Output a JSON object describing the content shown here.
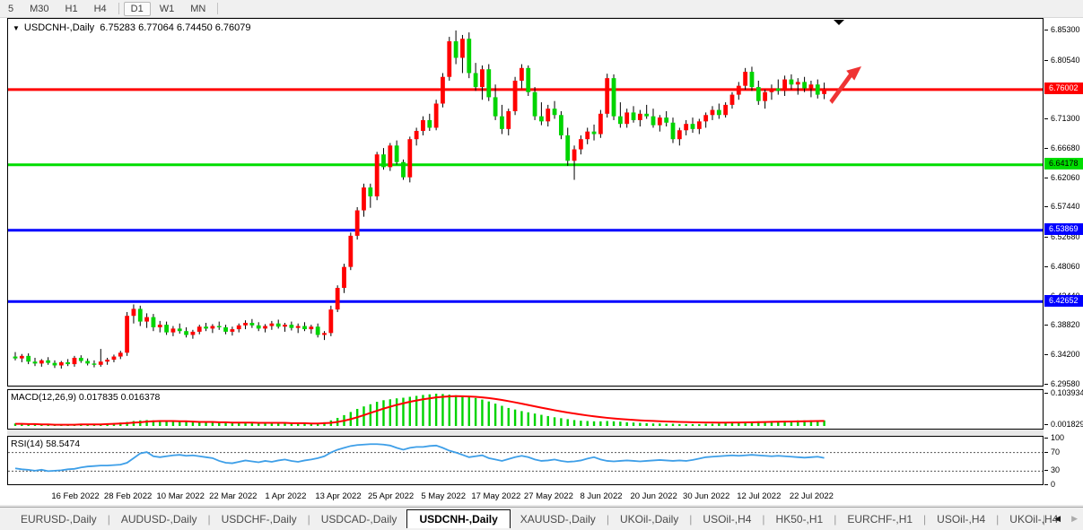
{
  "toolbar": {
    "items": [
      "5",
      "M30",
      "H1",
      "H4",
      "D1",
      "W1",
      "MN"
    ],
    "active": "D1",
    "separators_after": [
      "H4",
      "MN"
    ]
  },
  "chart_title": {
    "expander": "▼",
    "symbol": "USDCNH-,Daily",
    "ohlc": "6.75283 6.77064 6.74450 6.76079"
  },
  "price_axis": {
    "ticks": [
      "6.85300",
      "6.80540",
      "6.71300",
      "6.66680",
      "6.62060",
      "6.57440",
      "6.52680",
      "6.48060",
      "6.43440",
      "6.38820",
      "6.34200",
      "6.29580"
    ],
    "badges": [
      {
        "label": "6.76002",
        "bg": "#ff0000",
        "fg": "#ffffff"
      },
      {
        "label": "6.64178",
        "bg": "#00dd00",
        "fg": "#000000"
      },
      {
        "label": "6.53869",
        "bg": "#0000ff",
        "fg": "#ffffff"
      },
      {
        "label": "6.42652",
        "bg": "#0000ff",
        "fg": "#ffffff"
      }
    ]
  },
  "macd_panel": {
    "label": "MACD(12,26,9)",
    "values": "0.017835 0.016378",
    "axis": [
      "0.103934",
      "0.001829"
    ]
  },
  "rsi_panel": {
    "label": "RSI(14)",
    "value": "58.5474",
    "axis": [
      "100",
      "70",
      "30",
      "0"
    ]
  },
  "date_axis": [
    "16 Feb 2022",
    "28 Feb 2022",
    "10 Mar 2022",
    "22 Mar 2022",
    "1 Apr 2022",
    "13 Apr 2022",
    "25 Apr 2022",
    "5 May 2022",
    "17 May 2022",
    "27 May 2022",
    "8 Jun 2022",
    "20 Jun 2022",
    "30 Jun 2022",
    "12 Jul 2022",
    "22 Jul 2022"
  ],
  "tab_bar": {
    "tabs": [
      {
        "label": "EURUSD-,Daily",
        "active": false
      },
      {
        "label": "AUDUSD-,Daily",
        "active": false
      },
      {
        "label": "USDCHF-,Daily",
        "active": false
      },
      {
        "label": "USDCAD-,Daily",
        "active": false
      },
      {
        "label": "USDCNH-,Daily",
        "active": true
      },
      {
        "label": "XAUUSD-,Daily",
        "active": false
      },
      {
        "label": "UKOil-,Daily",
        "active": false
      },
      {
        "label": "USOil-,H4",
        "active": false
      },
      {
        "label": "HK50-,H1",
        "active": false
      },
      {
        "label": "EURCHF-,H1",
        "active": false
      },
      {
        "label": "USOil-,H4",
        "active": false
      },
      {
        "label": "UKOil-,H4",
        "active": false
      }
    ],
    "scroll_left": "◀",
    "scroll_right": "▶",
    "scroll_sep": "|"
  },
  "chart_data": {
    "type": "candlestick",
    "symbol": "USDCNH-,Daily",
    "up_color": "#ff0000",
    "down_color": "#00d400",
    "wick_color": "#000000",
    "price_range": [
      6.2958,
      6.853
    ],
    "hlines": [
      {
        "value": 6.76002,
        "color": "#ff0000",
        "width": 3
      },
      {
        "value": 6.64178,
        "color": "#00dd00",
        "width": 3
      },
      {
        "value": 6.53869,
        "color": "#0000ff",
        "width": 3
      },
      {
        "value": 6.42652,
        "color": "#0000ff",
        "width": 3
      }
    ],
    "drawings": {
      "trend_arrow_color": "#ef3434",
      "shift_marker_color": "#000000"
    },
    "ohlc": [
      [
        6.34,
        6.347,
        6.334,
        6.337
      ],
      [
        6.337,
        6.344,
        6.331,
        6.341
      ],
      [
        6.341,
        6.345,
        6.328,
        6.332
      ],
      [
        6.332,
        6.338,
        6.325,
        6.329
      ],
      [
        6.329,
        6.336,
        6.324,
        6.334
      ],
      [
        6.334,
        6.339,
        6.327,
        6.33
      ],
      [
        6.33,
        6.334,
        6.322,
        6.326
      ],
      [
        6.326,
        6.333,
        6.321,
        6.331
      ],
      [
        6.331,
        6.336,
        6.325,
        6.328
      ],
      [
        6.328,
        6.341,
        6.324,
        6.338
      ],
      [
        6.338,
        6.342,
        6.33,
        6.333
      ],
      [
        6.333,
        6.337,
        6.326,
        6.329
      ],
      [
        6.329,
        6.334,
        6.323,
        6.327
      ],
      [
        6.327,
        6.352,
        6.324,
        6.332
      ],
      [
        6.332,
        6.338,
        6.327,
        6.335
      ],
      [
        6.335,
        6.343,
        6.331,
        6.34
      ],
      [
        6.34,
        6.349,
        6.336,
        6.346
      ],
      [
        6.346,
        6.41,
        6.341,
        6.404
      ],
      [
        6.404,
        6.422,
        6.392,
        6.415
      ],
      [
        6.415,
        6.42,
        6.388,
        6.395
      ],
      [
        6.395,
        6.408,
        6.385,
        6.402
      ],
      [
        6.402,
        6.407,
        6.38,
        6.386
      ],
      [
        6.386,
        6.396,
        6.378,
        6.39
      ],
      [
        6.39,
        6.395,
        6.374,
        6.378
      ],
      [
        6.378,
        6.388,
        6.372,
        6.384
      ],
      [
        6.384,
        6.392,
        6.376,
        6.38
      ],
      [
        6.38,
        6.386,
        6.37,
        6.374
      ],
      [
        6.374,
        6.382,
        6.368,
        6.379
      ],
      [
        6.379,
        6.39,
        6.375,
        6.387
      ],
      [
        6.387,
        6.393,
        6.38,
        6.384
      ],
      [
        6.384,
        6.391,
        6.377,
        6.388
      ],
      [
        6.388,
        6.395,
        6.382,
        6.386
      ],
      [
        6.386,
        6.39,
        6.375,
        6.379
      ],
      [
        6.379,
        6.387,
        6.373,
        6.383
      ],
      [
        6.383,
        6.392,
        6.378,
        6.389
      ],
      [
        6.389,
        6.397,
        6.383,
        6.393
      ],
      [
        6.393,
        6.399,
        6.385,
        6.389
      ],
      [
        6.389,
        6.394,
        6.38,
        6.384
      ],
      [
        6.384,
        6.391,
        6.378,
        6.388
      ],
      [
        6.388,
        6.396,
        6.382,
        6.392
      ],
      [
        6.392,
        6.398,
        6.384,
        6.387
      ],
      [
        6.387,
        6.393,
        6.379,
        6.39
      ],
      [
        6.39,
        6.395,
        6.381,
        6.385
      ],
      [
        6.385,
        6.392,
        6.377,
        6.388
      ],
      [
        6.388,
        6.394,
        6.38,
        6.383
      ],
      [
        6.383,
        6.39,
        6.376,
        6.387
      ],
      [
        6.387,
        6.392,
        6.37,
        6.374
      ],
      [
        6.374,
        6.38,
        6.366,
        6.377
      ],
      [
        6.377,
        6.42,
        6.372,
        6.414
      ],
      [
        6.414,
        6.452,
        6.41,
        6.448
      ],
      [
        6.448,
        6.486,
        6.44,
        6.481
      ],
      [
        6.481,
        6.535,
        6.476,
        6.53
      ],
      [
        6.53,
        6.575,
        6.524,
        6.57
      ],
      [
        6.57,
        6.612,
        6.56,
        6.606
      ],
      [
        6.606,
        6.612,
        6.574,
        6.592
      ],
      [
        6.592,
        6.662,
        6.586,
        6.658
      ],
      [
        6.658,
        6.668,
        6.634,
        6.638
      ],
      [
        6.638,
        6.676,
        6.632,
        6.672
      ],
      [
        6.672,
        6.68,
        6.642,
        6.646
      ],
      [
        6.646,
        6.65,
        6.618,
        6.622
      ],
      [
        6.622,
        6.686,
        6.614,
        6.682
      ],
      [
        6.682,
        6.7,
        6.672,
        6.695
      ],
      [
        6.695,
        6.718,
        6.688,
        6.712
      ],
      [
        6.712,
        6.722,
        6.695,
        6.7
      ],
      [
        6.7,
        6.744,
        6.696,
        6.738
      ],
      [
        6.738,
        6.786,
        6.732,
        6.78
      ],
      [
        6.78,
        6.843,
        6.774,
        6.836
      ],
      [
        6.836,
        6.853,
        6.8,
        6.81
      ],
      [
        6.81,
        6.846,
        6.786,
        6.84
      ],
      [
        6.84,
        6.85,
        6.778,
        6.786
      ],
      [
        6.786,
        6.802,
        6.758,
        6.764
      ],
      [
        6.764,
        6.798,
        6.744,
        6.792
      ],
      [
        6.792,
        6.8,
        6.742,
        6.748
      ],
      [
        6.748,
        6.768,
        6.712,
        6.718
      ],
      [
        6.718,
        6.736,
        6.69,
        6.698
      ],
      [
        6.698,
        6.73,
        6.688,
        6.726
      ],
      [
        6.726,
        6.78,
        6.72,
        6.774
      ],
      [
        6.774,
        6.8,
        6.762,
        6.794
      ],
      [
        6.794,
        6.798,
        6.75,
        6.756
      ],
      [
        6.756,
        6.764,
        6.712,
        6.718
      ],
      [
        6.718,
        6.74,
        6.704,
        6.71
      ],
      [
        6.71,
        6.736,
        6.702,
        6.73
      ],
      [
        6.73,
        6.742,
        6.714,
        6.72
      ],
      [
        6.72,
        6.726,
        6.682,
        6.688
      ],
      [
        6.688,
        6.7,
        6.64,
        6.648
      ],
      [
        6.648,
        6.672,
        6.618,
        6.666
      ],
      [
        6.666,
        6.688,
        6.658,
        6.682
      ],
      [
        6.682,
        6.7,
        6.674,
        6.694
      ],
      [
        6.694,
        6.705,
        6.68,
        6.69
      ],
      [
        6.69,
        6.728,
        6.684,
        6.722
      ],
      [
        6.722,
        6.785,
        6.716,
        6.778
      ],
      [
        6.778,
        6.784,
        6.712,
        6.718
      ],
      [
        6.718,
        6.74,
        6.7,
        6.706
      ],
      [
        6.706,
        6.73,
        6.7,
        6.724
      ],
      [
        6.724,
        6.734,
        6.708,
        6.712
      ],
      [
        6.712,
        6.728,
        6.702,
        6.722
      ],
      [
        6.722,
        6.736,
        6.714,
        6.718
      ],
      [
        6.718,
        6.73,
        6.7,
        6.704
      ],
      [
        6.704,
        6.72,
        6.694,
        6.716
      ],
      [
        6.716,
        6.726,
        6.702,
        6.708
      ],
      [
        6.708,
        6.716,
        6.676,
        6.682
      ],
      [
        6.682,
        6.7,
        6.672,
        6.696
      ],
      [
        6.696,
        6.712,
        6.688,
        6.706
      ],
      [
        6.706,
        6.716,
        6.692,
        6.698
      ],
      [
        6.698,
        6.714,
        6.69,
        6.71
      ],
      [
        6.71,
        6.724,
        6.7,
        6.72
      ],
      [
        6.72,
        6.734,
        6.712,
        6.728
      ],
      [
        6.728,
        6.738,
        6.714,
        6.72
      ],
      [
        6.72,
        6.74,
        6.716,
        6.736
      ],
      [
        6.736,
        6.756,
        6.73,
        6.752
      ],
      [
        6.752,
        6.772,
        6.744,
        6.766
      ],
      [
        6.766,
        6.794,
        6.76,
        6.788
      ],
      [
        6.788,
        6.796,
        6.758,
        6.764
      ],
      [
        6.764,
        6.774,
        6.736,
        6.742
      ],
      [
        6.742,
        6.76,
        6.73,
        6.756
      ],
      [
        6.756,
        6.768,
        6.744,
        6.762
      ],
      [
        6.762,
        6.776,
        6.752,
        6.758
      ],
      [
        6.758,
        6.782,
        6.75,
        6.776
      ],
      [
        6.776,
        6.784,
        6.76,
        6.768
      ],
      [
        6.768,
        6.778,
        6.752,
        6.772
      ],
      [
        6.772,
        6.78,
        6.756,
        6.762
      ],
      [
        6.762,
        6.774,
        6.748,
        6.768
      ],
      [
        6.768,
        6.776,
        6.746,
        6.752
      ],
      [
        6.753,
        6.771,
        6.745,
        6.761
      ]
    ],
    "macd": {
      "color_hist": "#00d400",
      "color_signal": "#ff0000",
      "hist": [
        0.008,
        0.007,
        0.006,
        0.005,
        0.004,
        0.004,
        0.003,
        0.003,
        0.004,
        0.005,
        0.005,
        0.004,
        0.004,
        0.006,
        0.007,
        0.009,
        0.011,
        0.013,
        0.016,
        0.018,
        0.019,
        0.018,
        0.017,
        0.016,
        0.015,
        0.014,
        0.013,
        0.012,
        0.012,
        0.013,
        0.013,
        0.012,
        0.011,
        0.01,
        0.01,
        0.011,
        0.011,
        0.01,
        0.009,
        0.009,
        0.01,
        0.01,
        0.009,
        0.009,
        0.008,
        0.008,
        0.009,
        0.012,
        0.018,
        0.026,
        0.035,
        0.045,
        0.055,
        0.063,
        0.07,
        0.078,
        0.083,
        0.086,
        0.089,
        0.091,
        0.094,
        0.097,
        0.1,
        0.102,
        0.104,
        0.103,
        0.101,
        0.099,
        0.097,
        0.094,
        0.09,
        0.085,
        0.079,
        0.072,
        0.065,
        0.058,
        0.053,
        0.048,
        0.044,
        0.04,
        0.036,
        0.032,
        0.028,
        0.025,
        0.022,
        0.019,
        0.017,
        0.016,
        0.015,
        0.015,
        0.016,
        0.015,
        0.014,
        0.012,
        0.011,
        0.01,
        0.009,
        0.008,
        0.008,
        0.007,
        0.007,
        0.006,
        0.006,
        0.006,
        0.006,
        0.007,
        0.007,
        0.008,
        0.009,
        0.01,
        0.011,
        0.013,
        0.014,
        0.015,
        0.015,
        0.016,
        0.016,
        0.017,
        0.017,
        0.018,
        0.018,
        0.018,
        0.017,
        0.018
      ],
      "signal": [
        0.007,
        0.007,
        0.006,
        0.006,
        0.005,
        0.005,
        0.004,
        0.004,
        0.004,
        0.004,
        0.005,
        0.005,
        0.005,
        0.005,
        0.006,
        0.007,
        0.008,
        0.009,
        0.011,
        0.012,
        0.014,
        0.015,
        0.016,
        0.016,
        0.016,
        0.015,
        0.015,
        0.014,
        0.013,
        0.013,
        0.013,
        0.012,
        0.012,
        0.011,
        0.011,
        0.011,
        0.011,
        0.01,
        0.01,
        0.01,
        0.01,
        0.01,
        0.009,
        0.009,
        0.009,
        0.008,
        0.008,
        0.009,
        0.01,
        0.013,
        0.017,
        0.022,
        0.028,
        0.035,
        0.042,
        0.049,
        0.056,
        0.062,
        0.068,
        0.073,
        0.078,
        0.082,
        0.086,
        0.089,
        0.092,
        0.094,
        0.0955,
        0.096,
        0.0958,
        0.095,
        0.0938,
        0.092,
        0.0898,
        0.087,
        0.0838,
        0.08,
        0.076,
        0.0718,
        0.0675,
        0.0632,
        0.059,
        0.0548,
        0.0508,
        0.047,
        0.0434,
        0.04,
        0.0368,
        0.0338,
        0.031,
        0.0285,
        0.0262,
        0.0242,
        0.0224,
        0.0208,
        0.0194,
        0.0182,
        0.0171,
        0.0161,
        0.0152,
        0.0144,
        0.0137,
        0.0131,
        0.0125,
        0.012,
        0.0116,
        0.0113,
        0.0111,
        0.011,
        0.011,
        0.0111,
        0.0113,
        0.0116,
        0.012,
        0.0124,
        0.0128,
        0.0132,
        0.0136,
        0.014,
        0.0144,
        0.0148,
        0.0152,
        0.0156,
        0.016,
        0.0164
      ]
    },
    "rsi": {
      "color": "#3e9fe8",
      "levels": [
        70,
        30
      ],
      "values": [
        36,
        34,
        33,
        31,
        33,
        30,
        31,
        32,
        34,
        35,
        38,
        40,
        41,
        42,
        42,
        43,
        44,
        48,
        58,
        68,
        71,
        62,
        60,
        62,
        64,
        65,
        63,
        64,
        62,
        60,
        58,
        52,
        48,
        47,
        50,
        53,
        51,
        49,
        52,
        50,
        53,
        55,
        52,
        50,
        53,
        55,
        58,
        62,
        70,
        76,
        80,
        84,
        86,
        87,
        88,
        88,
        87,
        85,
        80,
        76,
        80,
        82,
        82,
        84,
        85,
        80,
        74,
        70,
        65,
        60,
        62,
        64,
        58,
        55,
        52,
        56,
        60,
        63,
        60,
        55,
        52,
        53,
        55,
        52,
        50,
        51,
        53,
        57,
        60,
        55,
        52,
        51,
        52,
        53,
        52,
        51,
        52,
        53,
        54,
        53,
        52,
        53,
        52,
        54,
        57,
        60,
        61,
        62,
        63,
        64,
        63,
        64,
        65,
        64,
        63,
        62,
        63,
        62,
        61,
        60,
        59,
        60,
        61,
        58.5
      ]
    }
  }
}
